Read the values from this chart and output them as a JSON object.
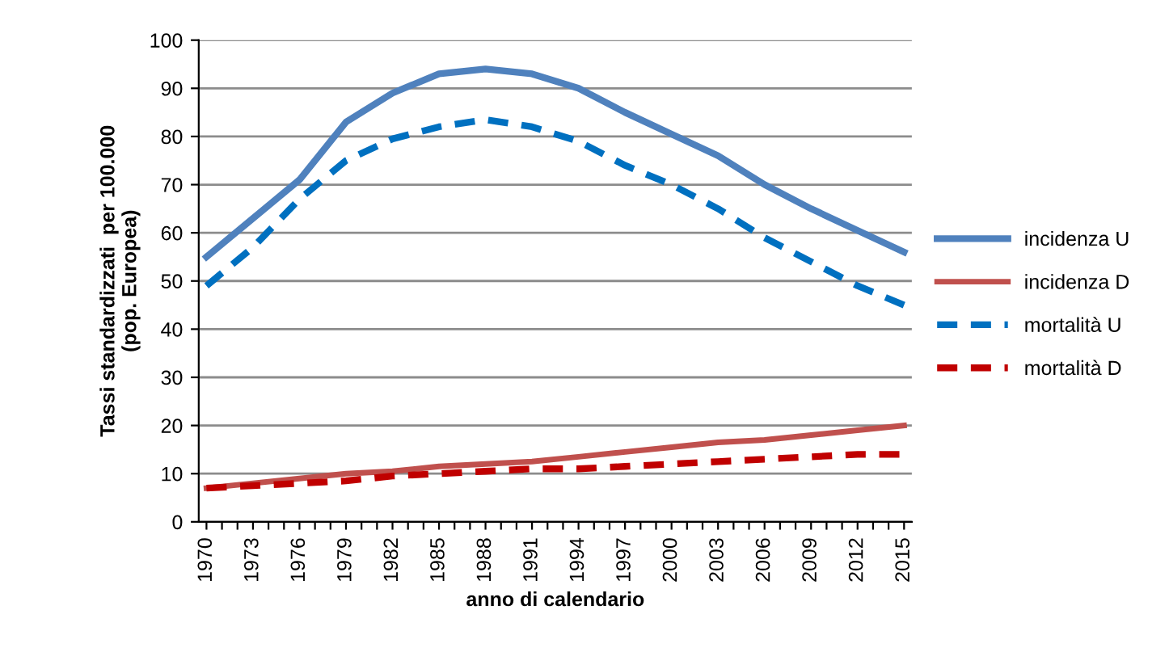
{
  "chart_data": {
    "type": "line",
    "xlabel": "anno di calendario",
    "ylabel": "Tassi standardizzati  per 100.000\n(pop. Europea)",
    "x": [
      1970,
      1973,
      1976,
      1979,
      1982,
      1985,
      1988,
      1991,
      1994,
      1997,
      2000,
      2003,
      2006,
      2009,
      2012,
      2015
    ],
    "series": [
      {
        "name": "incidenza U",
        "color": "#4f81bd",
        "line_style": "solid",
        "values": [
          55,
          63,
          71,
          83,
          89,
          93,
          94,
          93,
          90,
          85,
          80.5,
          76,
          70,
          65,
          60.5,
          56
        ]
      },
      {
        "name": "incidenza D",
        "color": "#c0504d",
        "line_style": "solid",
        "values": [
          7,
          8,
          9,
          10,
          10.5,
          11.5,
          12,
          12.5,
          13.5,
          14.5,
          15.5,
          16.5,
          17,
          18,
          19,
          20
        ]
      },
      {
        "name": "mortalità U",
        "color": "#0070c0",
        "line_style": "dashed",
        "values": [
          49,
          57,
          67,
          75,
          79.5,
          82,
          83.5,
          82,
          79,
          74,
          70,
          65,
          59,
          54,
          49,
          45
        ]
      },
      {
        "name": "mortalità D",
        "color": "#c00000",
        "line_style": "dashed",
        "values": [
          7,
          7.5,
          8,
          8.5,
          9.5,
          10,
          10.5,
          11,
          11,
          11.5,
          12,
          12.5,
          13,
          13.5,
          14,
          14
        ]
      }
    ],
    "xlim": [
      1969.5,
      2015.5
    ],
    "xticks": [
      1970,
      {
        "value": 1971,
        "label": null
      },
      {
        "value": 1972,
        "label": null
      },
      1973,
      {
        "value": 1974,
        "label": null
      },
      {
        "value": 1975,
        "label": null
      },
      1976,
      {
        "value": 1977,
        "label": null
      },
      {
        "value": 1978,
        "label": null
      },
      1979,
      {
        "value": 1980,
        "label": null
      },
      {
        "value": 1981,
        "label": null
      },
      1982,
      {
        "value": 1983,
        "label": null
      },
      {
        "value": 1984,
        "label": null
      },
      1985,
      {
        "value": 1986,
        "label": null
      },
      {
        "value": 1987,
        "label": null
      },
      1988,
      {
        "value": 1989,
        "label": null
      },
      {
        "value": 1990,
        "label": null
      },
      1991,
      {
        "value": 1992,
        "label": null
      },
      {
        "value": 1993,
        "label": null
      },
      1994,
      {
        "value": 1995,
        "label": null
      },
      {
        "value": 1996,
        "label": null
      },
      1997,
      {
        "value": 1998,
        "label": null
      },
      {
        "value": 1999,
        "label": null
      },
      2000,
      {
        "value": 2001,
        "label": null
      },
      {
        "value": 2002,
        "label": null
      },
      2003,
      {
        "value": 2004,
        "label": null
      },
      {
        "value": 2005,
        "label": null
      },
      2006,
      {
        "value": 2007,
        "label": null
      },
      {
        "value": 2008,
        "label": null
      },
      2009,
      {
        "value": 2010,
        "label": null
      },
      {
        "value": 2011,
        "label": null
      },
      2012,
      {
        "value": 2013,
        "label": null
      },
      {
        "value": 2014,
        "label": null
      },
      2015
    ],
    "ylim": [
      0,
      100
    ],
    "yticks": [
      0,
      10,
      20,
      30,
      40,
      50,
      60,
      70,
      80,
      90,
      100
    ],
    "grid": "y",
    "legend": "right",
    "marker": "none"
  }
}
